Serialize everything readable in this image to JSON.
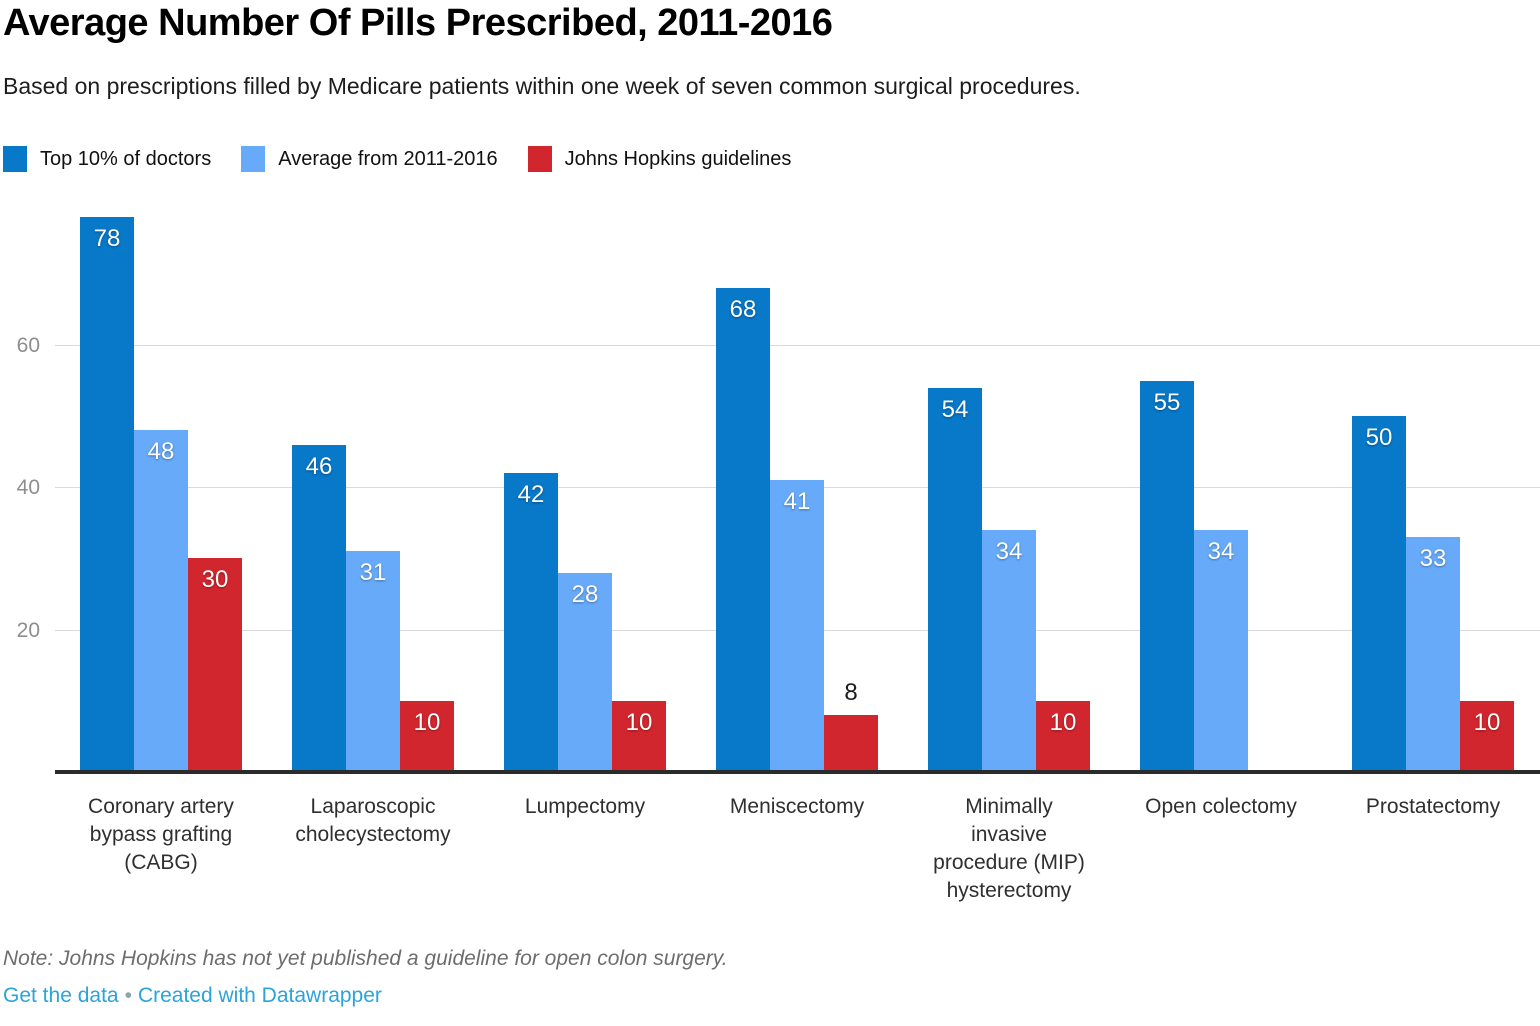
{
  "header": {
    "title": "Average Number Of Pills Prescribed, 2011-2016",
    "subtitle": "Based on prescriptions filled by Medicare patients within one week of seven common surgical procedures."
  },
  "legend": [
    {
      "label": "Top 10% of doctors",
      "color": "#0878c9"
    },
    {
      "label": "Average from 2011-2016",
      "color": "#66aaf9"
    },
    {
      "label": "Johns Hopkins guidelines",
      "color": "#d2262e"
    }
  ],
  "chart_data": {
    "type": "bar",
    "title": "Average Number Of Pills Prescribed, 2011-2016",
    "categories": [
      "Coronary artery\nbypass grafting\n(CABG)",
      "Laparoscopic\ncholecystectomy",
      "Lumpectomy",
      "Meniscectomy",
      "Minimally\ninvasive\nprocedure (MIP)\nhysterectomy",
      "Open colectomy",
      "Prostatectomy"
    ],
    "series": [
      {
        "name": "Top 10% of doctors",
        "color": "#0878c9",
        "values": [
          78,
          46,
          42,
          68,
          54,
          55,
          50
        ]
      },
      {
        "name": "Average from 2011-2016",
        "color": "#66aaf9",
        "values": [
          48,
          31,
          28,
          41,
          34,
          34,
          33
        ]
      },
      {
        "name": "Johns Hopkins guidelines",
        "color": "#d2262e",
        "values": [
          30,
          10,
          10,
          8,
          10,
          null,
          10
        ]
      }
    ],
    "yticks": [
      20,
      40,
      60
    ],
    "ylim": [
      0,
      82
    ],
    "xlabel": "",
    "ylabel": "",
    "grid": "horizontal",
    "legend_position": "top",
    "value_labels": "shown on each bar; white inside bar, dark above bar when bar is too short",
    "missing_data_note": "Johns Hopkins guidelines value absent for Open colectomy"
  },
  "footer": {
    "note": "Note: Johns Hopkins has not yet published a guideline for open colon surgery.",
    "links": [
      "Get the data",
      "Created with Datawrapper"
    ],
    "separator": "•",
    "link_color": "#2aa4da"
  }
}
